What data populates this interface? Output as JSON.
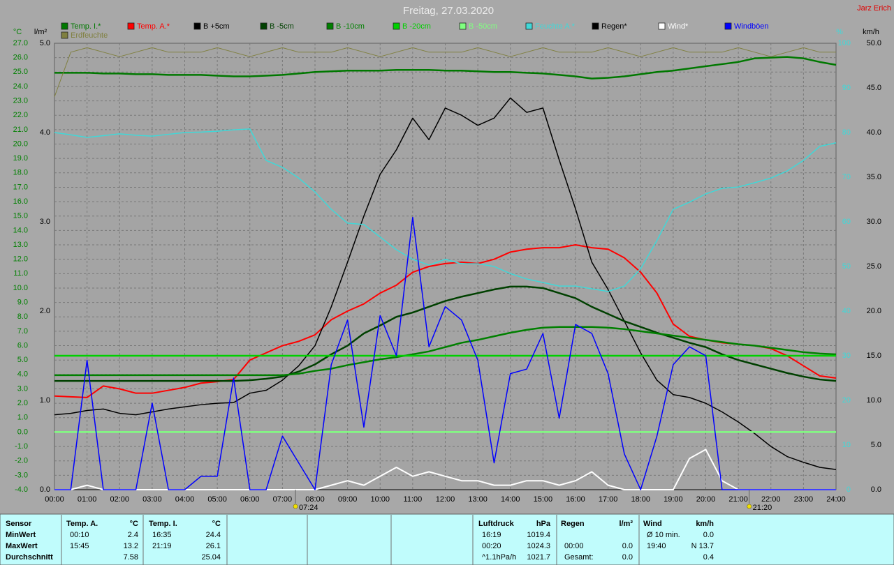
{
  "chart_data": {
    "type": "line",
    "title": "Freitag, 27.03.2020",
    "credit": "Jarz Erich",
    "ylabel": "°C",
    "y3label": "l/m²",
    "y4label": "%",
    "y2label": "km/h",
    "grid": true,
    "xlim": [
      0,
      24
    ],
    "xticks": [
      {
        "value": 0,
        "label": "00:00"
      },
      {
        "value": 1,
        "label": "01:00"
      },
      {
        "value": 2,
        "label": "02:00"
      },
      {
        "value": 3,
        "label": "03:00"
      },
      {
        "value": 4,
        "label": "04:00"
      },
      {
        "value": 5,
        "label": "05:00"
      },
      {
        "value": 6,
        "label": "06:00"
      },
      {
        "value": 7,
        "label": "07:00"
      },
      {
        "value": 8,
        "label": "08:00"
      },
      {
        "value": 9,
        "label": "09:00"
      },
      {
        "value": 10,
        "label": "10:00"
      },
      {
        "value": 11,
        "label": "11:00"
      },
      {
        "value": 12,
        "label": "12:00"
      },
      {
        "value": 13,
        "label": "13:00"
      },
      {
        "value": 14,
        "label": "14:00"
      },
      {
        "value": 15,
        "label": "15:00"
      },
      {
        "value": 16,
        "label": "16:00"
      },
      {
        "value": 17,
        "label": "17:00"
      },
      {
        "value": 18,
        "label": "18:00"
      },
      {
        "value": 19,
        "label": "19:00"
      },
      {
        "value": 20,
        "label": "20:00"
      },
      {
        "value": 21,
        "label": "21:00"
      },
      {
        "value": 22,
        "label": "22:00"
      },
      {
        "value": 23,
        "label": "23:00"
      },
      {
        "value": 24,
        "label": "24:00"
      }
    ],
    "ylim": [
      -4,
      27
    ],
    "yticks": [
      {
        "value": -4,
        "label": "-4.0"
      },
      {
        "value": -3,
        "label": "-3.0"
      },
      {
        "value": -2,
        "label": "-2.0"
      },
      {
        "value": -1,
        "label": "-1.0"
      },
      {
        "value": 0,
        "label": "0.0"
      },
      {
        "value": 1,
        "label": "1.0"
      },
      {
        "value": 2,
        "label": "2.0"
      },
      {
        "value": 3,
        "label": "3.0"
      },
      {
        "value": 4,
        "label": "4.0"
      },
      {
        "value": 5,
        "label": "5.0"
      },
      {
        "value": 6,
        "label": "6.0"
      },
      {
        "value": 7,
        "label": "7.0"
      },
      {
        "value": 8,
        "label": "8.0"
      },
      {
        "value": 9,
        "label": "9.0"
      },
      {
        "value": 10,
        "label": "10.0"
      },
      {
        "value": 11,
        "label": "11.0"
      },
      {
        "value": 12,
        "label": "12.0"
      },
      {
        "value": 13,
        "label": "13.0"
      },
      {
        "value": 14,
        "label": "14.0"
      },
      {
        "value": 15,
        "label": "15.0"
      },
      {
        "value": 16,
        "label": "16.0"
      },
      {
        "value": 17,
        "label": "17.0"
      },
      {
        "value": 18,
        "label": "18.0"
      },
      {
        "value": 19,
        "label": "19.0"
      },
      {
        "value": 20,
        "label": "20.0"
      },
      {
        "value": 21,
        "label": "21.0"
      },
      {
        "value": 22,
        "label": "22.0"
      },
      {
        "value": 23,
        "label": "23.0"
      },
      {
        "value": 24,
        "label": "24.0"
      },
      {
        "value": 25,
        "label": "25.0"
      },
      {
        "value": 26,
        "label": "26.0"
      },
      {
        "value": 27,
        "label": "27.0"
      }
    ],
    "y3lim": [
      0,
      5
    ],
    "y3ticks": [
      {
        "value": 0,
        "label": "0.0"
      },
      {
        "value": 1,
        "label": "1.0"
      },
      {
        "value": 2,
        "label": "2.0"
      },
      {
        "value": 3,
        "label": "3.0"
      },
      {
        "value": 4,
        "label": "4.0"
      },
      {
        "value": 5,
        "label": "5.0"
      }
    ],
    "y4lim": [
      0,
      100
    ],
    "y4ticks": [
      0,
      10,
      20,
      30,
      40,
      50,
      60,
      70,
      80,
      90,
      100
    ],
    "y2lim": [
      0,
      50
    ],
    "y2ticks": [
      {
        "value": 0,
        "label": "0.0"
      },
      {
        "value": 5,
        "label": "5.0"
      },
      {
        "value": 10,
        "label": "10.0"
      },
      {
        "value": 15,
        "label": "15.0"
      },
      {
        "value": 20,
        "label": "20.0"
      },
      {
        "value": 25,
        "label": "25.0"
      },
      {
        "value": 30,
        "label": "30.0"
      },
      {
        "value": 35,
        "label": "35.0"
      },
      {
        "value": 40,
        "label": "40.0"
      },
      {
        "value": 45,
        "label": "45.0"
      },
      {
        "value": 50,
        "label": "50.0"
      }
    ],
    "x": [
      0,
      0.5,
      1,
      1.5,
      2,
      2.5,
      3,
      3.5,
      4,
      4.5,
      5,
      5.5,
      6,
      6.5,
      7,
      7.5,
      8,
      8.5,
      9,
      9.5,
      10,
      10.5,
      11,
      11.5,
      12,
      12.5,
      13,
      13.5,
      14,
      14.5,
      15,
      15.5,
      16,
      16.5,
      17,
      17.5,
      18,
      18.5,
      19,
      19.5,
      20,
      20.5,
      21,
      21.5,
      22,
      22.5,
      23,
      23.5,
      24
    ],
    "series": [
      {
        "name": "Temp. I.*",
        "color": "#007800",
        "values": [
          24.95,
          24.95,
          24.95,
          24.9,
          24.9,
          24.85,
          24.85,
          24.8,
          24.8,
          24.8,
          24.75,
          24.7,
          24.7,
          24.75,
          24.8,
          24.9,
          25.0,
          25.05,
          25.1,
          25.1,
          25.1,
          25.15,
          25.15,
          25.15,
          25.1,
          25.1,
          25.05,
          25.0,
          25.0,
          24.95,
          24.9,
          24.8,
          24.7,
          24.55,
          24.6,
          24.7,
          24.85,
          25.0,
          25.1,
          25.25,
          25.4,
          25.55,
          25.7,
          25.95,
          26.0,
          26.05,
          25.95,
          25.7,
          25.5
        ]
      },
      {
        "name": "Temp. A.*",
        "color": "#ff0000",
        "values": [
          2.5,
          2.45,
          2.4,
          3.2,
          3.0,
          2.7,
          2.7,
          2.9,
          3.1,
          3.4,
          3.5,
          3.65,
          5.0,
          5.5,
          6.0,
          6.3,
          6.75,
          7.8,
          8.4,
          8.9,
          9.65,
          10.2,
          11.1,
          11.5,
          11.7,
          11.8,
          11.7,
          12.0,
          12.5,
          12.7,
          12.8,
          12.8,
          13.0,
          12.8,
          12.7,
          12.1,
          11.1,
          9.65,
          7.5,
          6.65,
          6.4,
          6.2,
          6.1,
          6.0,
          5.8,
          5.3,
          4.6,
          3.9,
          3.75
        ]
      },
      {
        "name": "B +5cm",
        "color": "#000000",
        "values": [
          1.2,
          1.3,
          1.5,
          1.6,
          1.3,
          1.2,
          1.4,
          1.6,
          1.75,
          1.9,
          2.0,
          2.05,
          2.7,
          2.9,
          3.6,
          4.6,
          6.0,
          8.7,
          11.8,
          15.0,
          17.9,
          19.6,
          21.8,
          20.3,
          22.5,
          22.0,
          21.3,
          21.8,
          23.2,
          22.2,
          22.5,
          18.9,
          15.5,
          11.8,
          9.9,
          7.7,
          5.5,
          3.6,
          2.6,
          2.4,
          2.0,
          1.4,
          0.7,
          -0.1,
          -1.0,
          -1.7,
          -2.1,
          -2.45,
          -2.6
        ]
      },
      {
        "name": "B -5cm",
        "color": "#004000",
        "values": [
          3.55,
          3.55,
          3.55,
          3.55,
          3.55,
          3.55,
          3.55,
          3.55,
          3.55,
          3.55,
          3.55,
          3.55,
          3.6,
          3.7,
          3.85,
          4.2,
          4.7,
          5.4,
          6.0,
          6.85,
          7.4,
          8.0,
          8.3,
          8.7,
          9.1,
          9.4,
          9.65,
          9.9,
          10.1,
          10.1,
          10.0,
          9.65,
          9.3,
          8.7,
          8.2,
          7.7,
          7.3,
          6.9,
          6.55,
          6.2,
          5.9,
          5.4,
          5.0,
          4.7,
          4.4,
          4.1,
          3.85,
          3.65,
          3.55
        ]
      },
      {
        "name": "B -10cm",
        "color": "#008000",
        "values": [
          3.95,
          3.95,
          3.95,
          3.95,
          3.95,
          3.95,
          3.95,
          3.95,
          3.95,
          3.95,
          3.95,
          3.95,
          3.95,
          3.95,
          3.95,
          4.05,
          4.25,
          4.4,
          4.65,
          4.85,
          5.05,
          5.2,
          5.4,
          5.6,
          5.9,
          6.2,
          6.4,
          6.65,
          6.9,
          7.1,
          7.25,
          7.3,
          7.3,
          7.3,
          7.25,
          7.15,
          7.0,
          6.85,
          6.7,
          6.55,
          6.4,
          6.25,
          6.1,
          6.0,
          5.85,
          5.7,
          5.55,
          5.45,
          5.4
        ]
      },
      {
        "name": "B -20cm",
        "color": "#00d000",
        "values": [
          5.3,
          5.3,
          5.3,
          5.3,
          5.3,
          5.3,
          5.3,
          5.3,
          5.3,
          5.3,
          5.3,
          5.3,
          5.3,
          5.3,
          5.3,
          5.3,
          5.3,
          5.3,
          5.3,
          5.3,
          5.3,
          5.3,
          5.3,
          5.3,
          5.3,
          5.3,
          5.3,
          5.3,
          5.3,
          5.3,
          5.3,
          5.3,
          5.3,
          5.3,
          5.3,
          5.3,
          5.3,
          5.3,
          5.3,
          5.3,
          5.3,
          5.3,
          5.3,
          5.3,
          5.3,
          5.3,
          5.3,
          5.3,
          5.3
        ]
      },
      {
        "name": "B -50cm",
        "color": "#80ff80",
        "values": [
          0,
          0,
          0,
          0,
          0,
          0,
          0,
          0,
          0,
          0,
          0,
          0,
          0,
          0,
          0,
          0,
          0,
          0,
          0,
          0,
          0,
          0,
          0,
          0,
          0,
          0,
          0,
          0,
          0,
          0,
          0,
          0,
          0,
          0,
          0,
          0,
          0,
          0,
          0,
          0,
          0,
          0,
          0,
          0,
          0,
          0,
          0,
          0,
          0
        ]
      },
      {
        "name": "Feuchte A.*",
        "color": "#40d8d8",
        "axis": "y4",
        "values": [
          80.0,
          79.5,
          78.9,
          79.3,
          79.7,
          79.4,
          79.2,
          79.6,
          80.0,
          80.1,
          80.3,
          80.6,
          80.8,
          73.75,
          72.2,
          69.8,
          66.7,
          62.8,
          59.7,
          59.4,
          56.6,
          53.75,
          51.6,
          50.3,
          51.6,
          50.6,
          50.6,
          50.0,
          48.4,
          47.2,
          46.4,
          45.6,
          45.6,
          45.0,
          44.4,
          45.6,
          49.5,
          55.8,
          62.8,
          64.4,
          66.25,
          67.5,
          67.8,
          68.75,
          69.8,
          71.4,
          73.75,
          76.9,
          77.7
        ]
      },
      {
        "name": "Regen*",
        "color": "#000000",
        "axis": "y3",
        "values": [
          0,
          0,
          0,
          0,
          0,
          0,
          0,
          0,
          0,
          0,
          0,
          0,
          0,
          0,
          0,
          0,
          0,
          0,
          0,
          0,
          0,
          0,
          0,
          0,
          0,
          0,
          0,
          0,
          0,
          0,
          0,
          0,
          0,
          0,
          0,
          0,
          0,
          0,
          0,
          0,
          0,
          0,
          0,
          0,
          0,
          0,
          0,
          0,
          0
        ]
      },
      {
        "name": "Wind*",
        "color": "#ffffff",
        "axis": "y2",
        "values": [
          0,
          0,
          0.5,
          0,
          0,
          0,
          0,
          0,
          0,
          0,
          0,
          0,
          0,
          0,
          0,
          0,
          0,
          0.5,
          1.0,
          0.5,
          1.5,
          2.5,
          1.5,
          2.0,
          1.5,
          1.0,
          1.0,
          0.5,
          0.5,
          1.0,
          1.0,
          0.5,
          1.0,
          2.0,
          0.5,
          0,
          0,
          0,
          0,
          3.5,
          4.5,
          1.0,
          0,
          0,
          0,
          0,
          0,
          0,
          0
        ]
      },
      {
        "name": "Windböen",
        "color": "#0000ff",
        "axis": "y2",
        "values": [
          0,
          0,
          14.5,
          0,
          0,
          0,
          9.7,
          0,
          0,
          1.5,
          1.5,
          12.5,
          0,
          0,
          6,
          3,
          0,
          14,
          19,
          7,
          19.5,
          15,
          30.5,
          16,
          20.5,
          19,
          14.5,
          3,
          13,
          13.5,
          17.5,
          8,
          18.5,
          17.5,
          13,
          4,
          0,
          6,
          14,
          16,
          15,
          0,
          0,
          0,
          0,
          0,
          0,
          0,
          0
        ]
      },
      {
        "name": "Erdfeuchte",
        "color": "#808040",
        "axis": "y4",
        "values": [
          88,
          98,
          99,
          98,
          97,
          98,
          99,
          98,
          98,
          98,
          99,
          98,
          97,
          98,
          99,
          98,
          98,
          98,
          99,
          98,
          97,
          98,
          99,
          98,
          98,
          98,
          99,
          98,
          97,
          98,
          99,
          98,
          98,
          98,
          99,
          98,
          97,
          98,
          99,
          98,
          98,
          98,
          99,
          98,
          97,
          98,
          99,
          98,
          98
        ]
      }
    ],
    "annotations": [
      {
        "x": 7.4,
        "label": "07:24"
      },
      {
        "x": 21.3333,
        "label": "21:20"
      }
    ]
  },
  "stats": {
    "sensor": {
      "header": "Sensor",
      "rows": [
        "MinWert",
        "MaxWert",
        "Durchschnitt"
      ]
    },
    "columns": [
      {
        "header": "Temp. A.",
        "unit": "°C",
        "min": {
          "time": "00:10",
          "value": "2.4"
        },
        "max": {
          "time": "15:45",
          "value": "13.2"
        },
        "avg": {
          "value": "7.58"
        }
      },
      {
        "header": "Temp. I.",
        "unit": "°C",
        "min": {
          "time": "16:35",
          "value": "24.4"
        },
        "max": {
          "time": "21:19",
          "value": "26.1"
        },
        "avg": {
          "value": "25.04"
        }
      },
      {
        "header": "Luftdruck",
        "unit": "hPa",
        "min": {
          "time": "16:19",
          "value": "1019.4"
        },
        "max": {
          "time": "00:20",
          "value": "1024.3"
        },
        "avg": {
          "time": "^1.1hPa/h",
          "value": "1021.7"
        }
      },
      {
        "header": "Regen",
        "unit": "l/m²",
        "max": {
          "time": "00:00",
          "value": "0.0"
        },
        "avg": {
          "time": "Gesamt:",
          "value": "0.0"
        }
      },
      {
        "header": "Wind",
        "unit": "km/h",
        "min": {
          "time": "Ø 10 min.",
          "value": "0.0"
        },
        "max": {
          "time": "19:40",
          "value": "N 13.7"
        },
        "avg": {
          "value": "0.4"
        }
      }
    ]
  }
}
